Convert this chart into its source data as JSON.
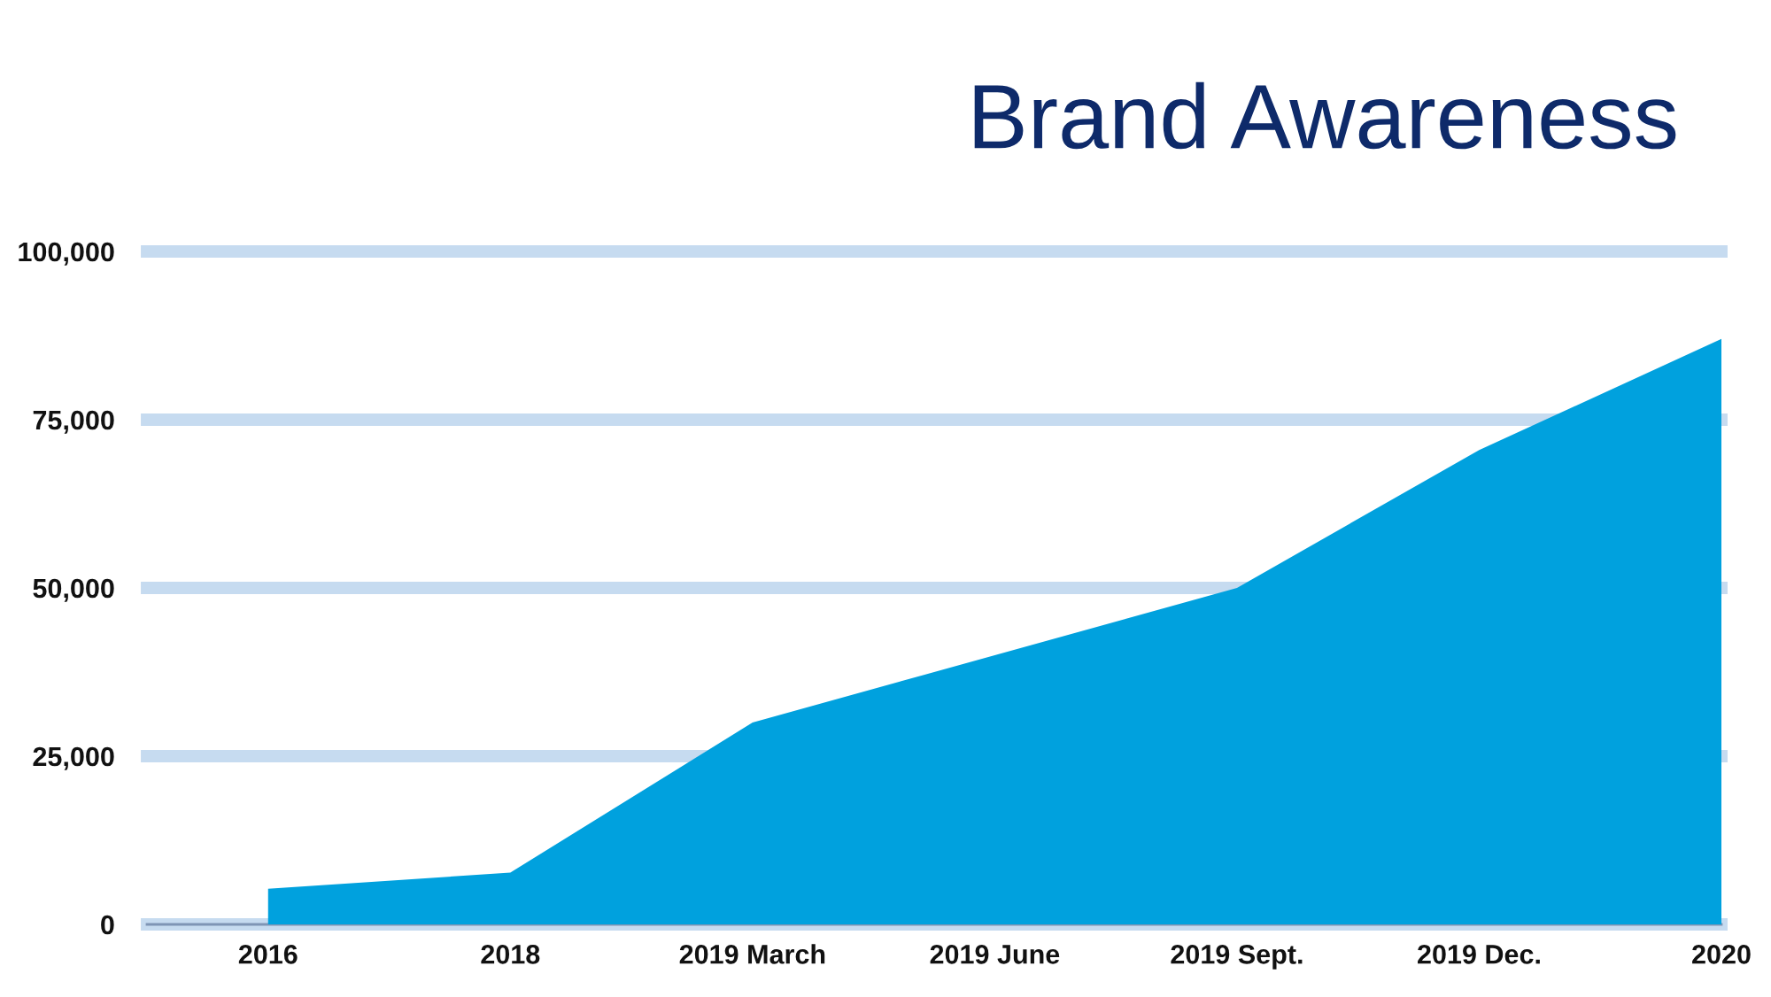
{
  "chart_data": {
    "type": "area",
    "title": "Brand Awareness",
    "categories": [
      "2016",
      "2018",
      "2019 March",
      "2019 June",
      "2019 Sept.",
      "2019 Dec.",
      "2020"
    ],
    "values": [
      5300,
      7700,
      30000,
      40000,
      50000,
      70500,
      87000
    ],
    "color": "#00a1de",
    "ylim": [
      0,
      100000
    ],
    "yticks": [
      0,
      {
        "value": 25000,
        "label": "25,000"
      },
      {
        "value": 50000,
        "label": "50,000"
      },
      {
        "value": 75000,
        "label": "75,000"
      },
      {
        "value": 100000,
        "label": "100,000"
      }
    ],
    "grid": "y"
  }
}
